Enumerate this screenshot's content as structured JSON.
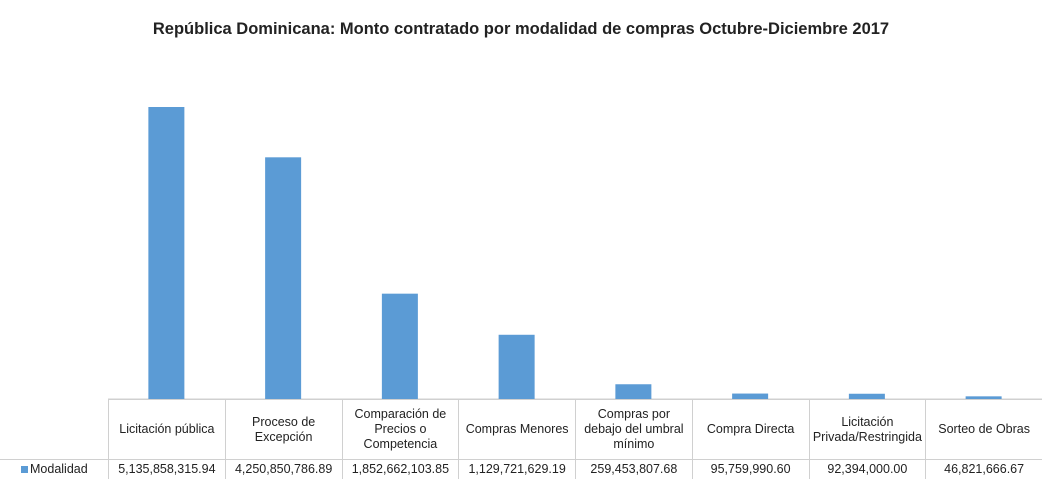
{
  "chart_data": {
    "type": "bar",
    "title": "República Dominicana: Monto contratado por modalidad de compras Octubre-Diciembre 2017",
    "categories": [
      "Licitación pública",
      "Proceso de Excepción",
      "Comparación de Precios o Competencia",
      "Compras Menores",
      "Compras por debajo del umbral mínimo",
      "Compra Directa",
      "Licitación Privada/Restringida",
      "Sorteo de Obras"
    ],
    "series": [
      {
        "name": "Modalidad",
        "color": "#5b9bd5",
        "values": [
          5135858315.94,
          4250850786.89,
          1852662103.85,
          1129721629.19,
          259453807.68,
          95759990.6,
          92394000.0,
          46821666.67
        ],
        "value_labels": [
          "5,135,858,315.94",
          "4,250,850,786.89",
          "1,852,662,103.85",
          "1,129,721,629.19",
          "259,453,807.68",
          "95,759,990.60",
          "92,394,000.00",
          "46,821,666.67"
        ]
      }
    ],
    "legend": "table"
  }
}
